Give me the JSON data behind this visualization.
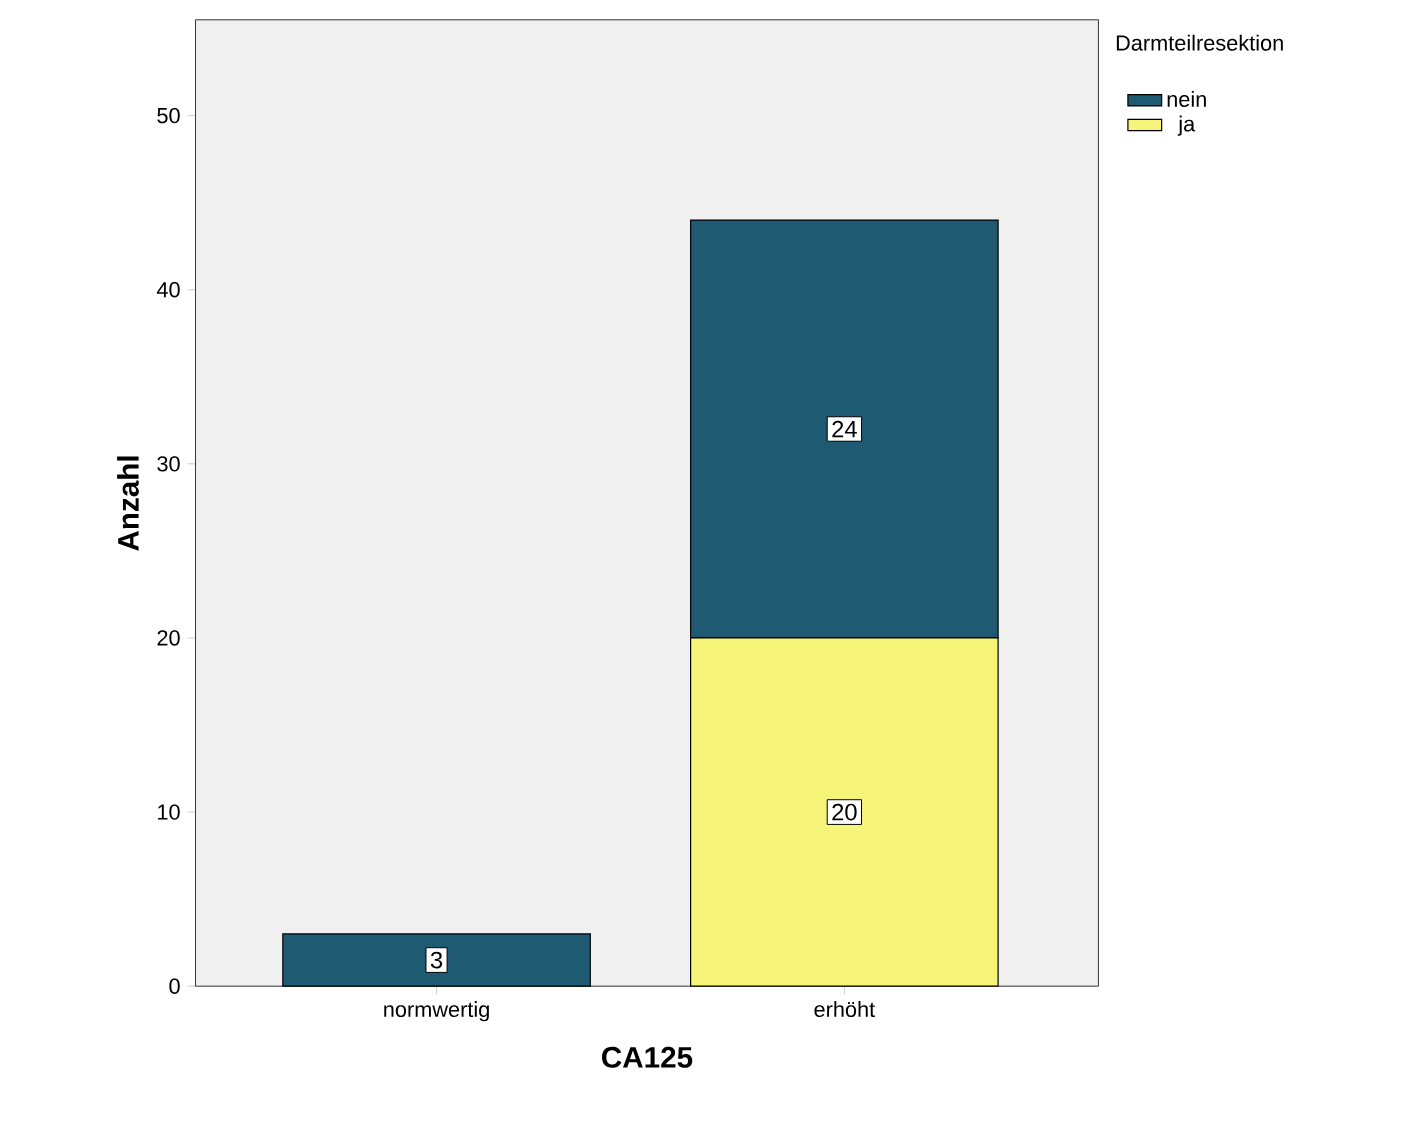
{
  "chart_data": {
    "type": "bar",
    "stacked": true,
    "xlabel": "CA125",
    "ylabel": "Anzahl",
    "legend_title": "Darmteilresektion",
    "categories": [
      "normwertig",
      "erhöht"
    ],
    "series": [
      {
        "name": "ja",
        "color": "#f7f47a",
        "values": [
          0,
          20
        ],
        "value_labels": [
          null,
          "20"
        ]
      },
      {
        "name": "nein",
        "color": "#1f5a73",
        "values": [
          3,
          24
        ],
        "value_labels": [
          "3",
          "24"
        ]
      }
    ],
    "ylim": [
      0,
      55.5
    ],
    "yticks": [
      0,
      10,
      20,
      30,
      40,
      50
    ],
    "grid": false,
    "legend": "top right"
  }
}
